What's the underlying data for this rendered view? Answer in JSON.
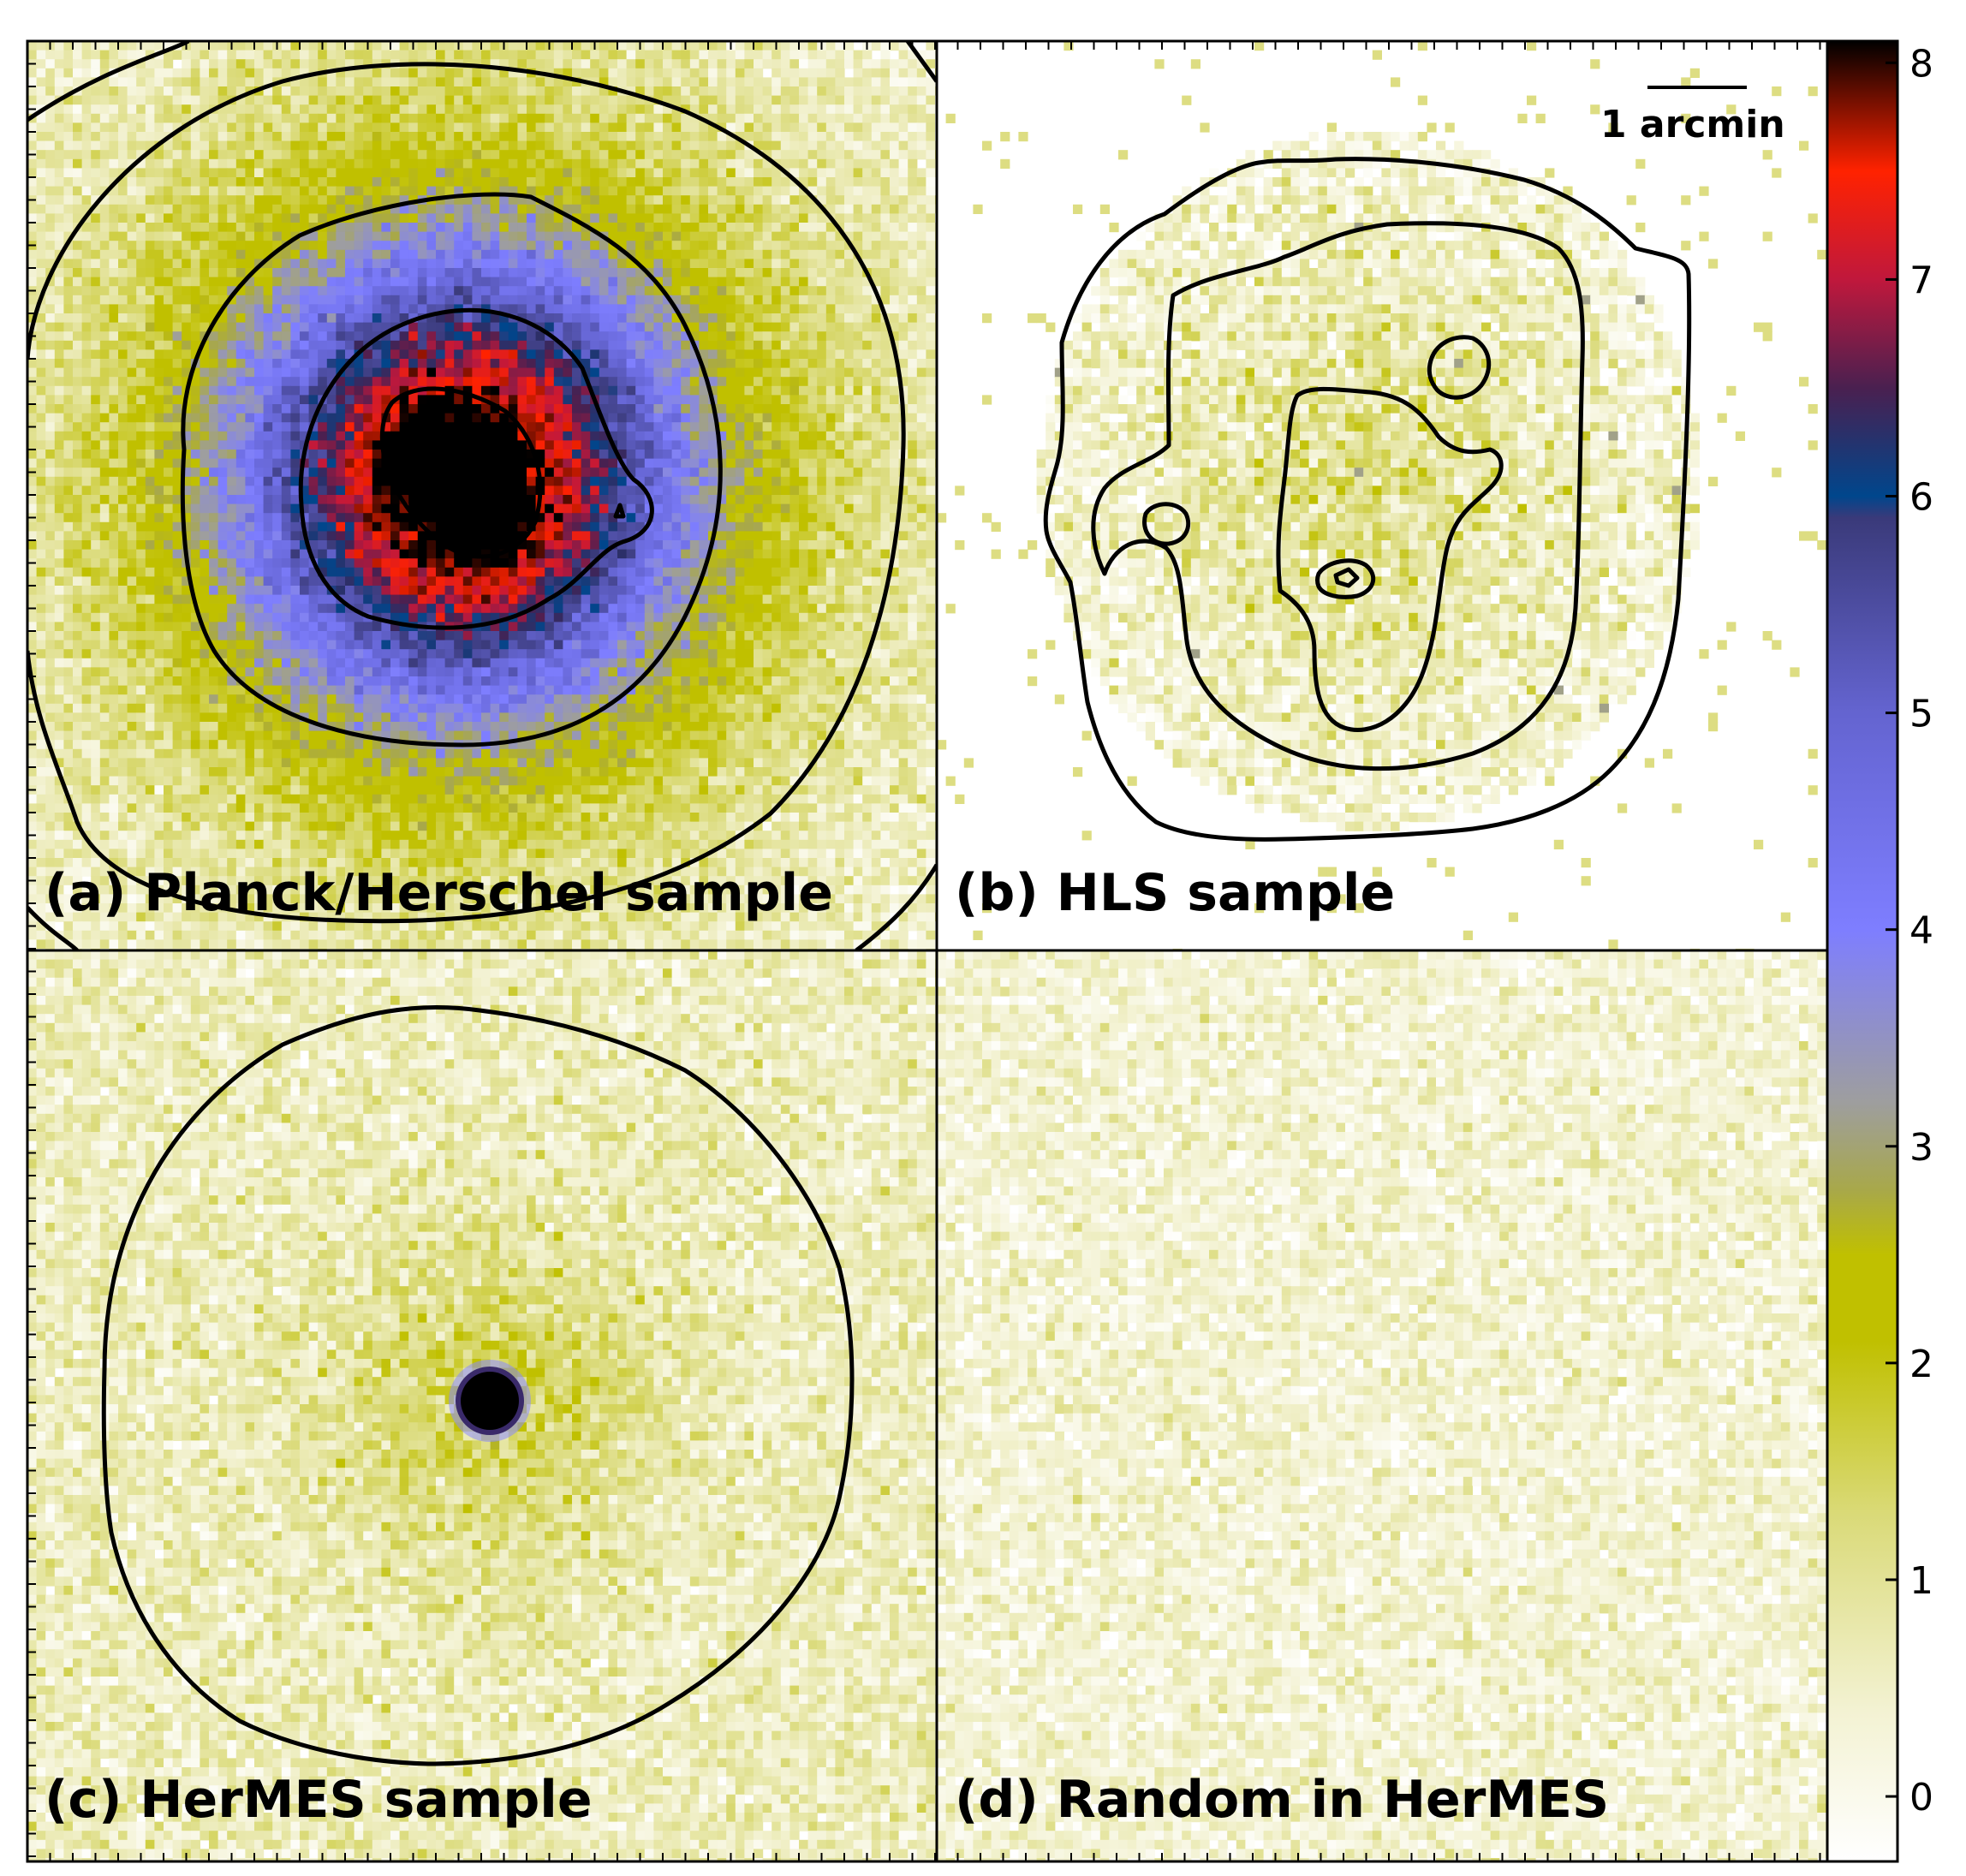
{
  "chart_data": {
    "type": "heatmap",
    "description_panels": 4,
    "panels": [
      {
        "id": "a",
        "label": "(a) Planck/Herschel sample"
      },
      {
        "id": "b",
        "label": "(b) HLS sample"
      },
      {
        "id": "c",
        "label": "(c) HerMES sample"
      },
      {
        "id": "d",
        "label": "(d) Random in HerMES"
      }
    ],
    "scale_bar": {
      "label": "1 arcmin"
    },
    "colorbar": {
      "range": [
        -0.3,
        8.1
      ],
      "ticks": [
        0,
        1,
        2,
        3,
        4,
        5,
        6,
        7,
        8
      ],
      "tick_labels": [
        "0",
        "1",
        "2",
        "3",
        "4",
        "5",
        "6",
        "7",
        "8"
      ],
      "stops": [
        {
          "value": -0.3,
          "color": "#ffffff"
        },
        {
          "value": 0.4,
          "color": "#f3f2d2"
        },
        {
          "value": 1.3,
          "color": "#dada78"
        },
        {
          "value": 2.1,
          "color": "#c0c000"
        },
        {
          "value": 2.5,
          "color": "#c0c000"
        },
        {
          "value": 2.8,
          "color": "#a8a84a"
        },
        {
          "value": 3.2,
          "color": "#9e9e9e"
        },
        {
          "value": 4.0,
          "color": "#7e7eff"
        },
        {
          "value": 5.0,
          "color": "#6464d0"
        },
        {
          "value": 5.9,
          "color": "#3a3a7a"
        },
        {
          "value": 6.0,
          "color": "#00468c"
        },
        {
          "value": 6.5,
          "color": "#4a2050"
        },
        {
          "value": 7.0,
          "color": "#c0183c"
        },
        {
          "value": 7.5,
          "color": "#ff2200"
        },
        {
          "value": 8.1,
          "color": "#000000"
        }
      ]
    }
  }
}
